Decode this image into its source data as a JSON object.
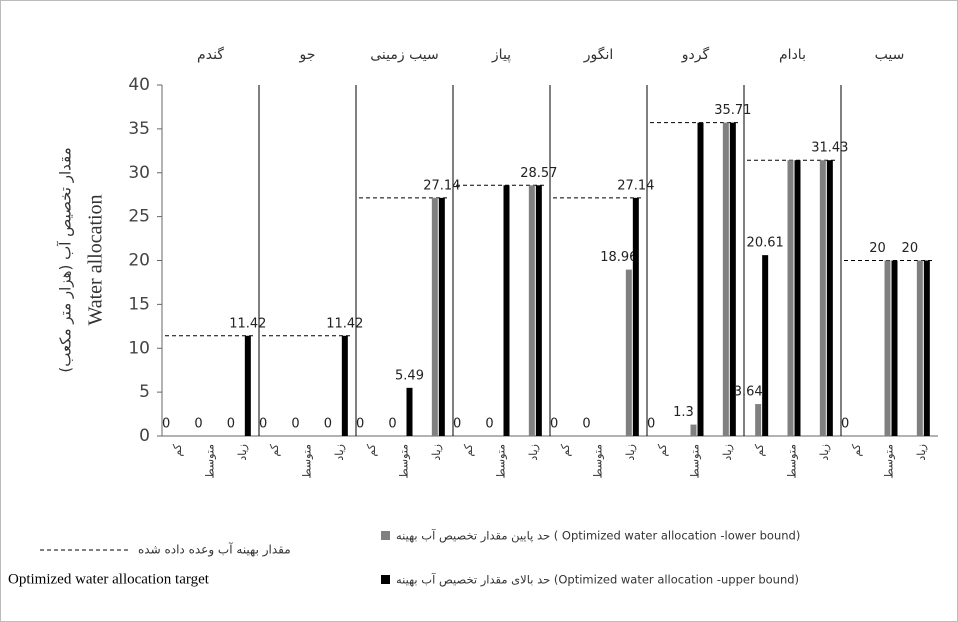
{
  "chart_data": {
    "type": "grouped_bar",
    "y_title_fa": "مقدار تخصیص آب (هزار متر مکعب)",
    "y_title_en": "Water allocation",
    "groups": [
      "گندم",
      "جو",
      "سیب زمینی",
      "پیاز",
      "انگور",
      "گردو",
      "بادام",
      "سیب"
    ],
    "categories": [
      "کم",
      "متوسط",
      "زیاد",
      "کم",
      "متوسط",
      "زیاد",
      "کم",
      "متوسط",
      "زیاد",
      "کم",
      "متوسط",
      "زیاد",
      "کم",
      "متوسط",
      "زیاد",
      "کم",
      "متوسط",
      "زیاد",
      "کم",
      "متوسط",
      "زیاد",
      "کم",
      "متوسط",
      "زیاد"
    ],
    "series": [
      {
        "name": "حد پایین مقدار تخصیص آب بهینه ( Optimized water allocation -lower bound)",
        "color": "#808080",
        "values": [
          0,
          0,
          0,
          0,
          0,
          0,
          0,
          0,
          27.14,
          0,
          0,
          28.57,
          0,
          0,
          18.96,
          0,
          1.3,
          35.71,
          3.64,
          31.43,
          31.43,
          0,
          20,
          20
        ],
        "value_labels": [
          "0",
          "0",
          "0",
          "0",
          "0",
          "0",
          "0",
          "0",
          null,
          "0",
          "0",
          null,
          "0",
          "0",
          "18.96",
          "0",
          "1.3",
          null,
          "3.64",
          null,
          null,
          "0",
          "20",
          "20"
        ]
      },
      {
        "name": "حد بالای مقدار تخصیص آب بهینه (Optimized water allocation -upper bound)",
        "color": "#000000",
        "values": [
          0,
          0,
          11.42,
          0,
          0,
          11.42,
          0,
          5.49,
          27.14,
          0,
          28.57,
          28.57,
          0,
          0,
          27.14,
          0,
          35.71,
          35.71,
          20.61,
          31.43,
          31.43,
          0,
          20,
          20
        ],
        "value_labels": [
          null,
          null,
          "11.42",
          null,
          null,
          "11.42",
          null,
          "5.49",
          "27.14",
          null,
          null,
          "28.57",
          null,
          null,
          "27.14",
          null,
          null,
          "35.71",
          "20.61",
          null,
          "31.43",
          null,
          null,
          null
        ]
      }
    ],
    "target": {
      "name_fa": "مقدار بهینه آب وعده داده شده",
      "name_en": "Optimized water allocation target",
      "values": [
        11.42,
        11.42,
        27.14,
        28.57,
        27.14,
        35.71,
        31.43,
        20
      ]
    },
    "ylim": [
      0,
      40
    ],
    "yticks": [
      0,
      5,
      10,
      15,
      20,
      25,
      30,
      35,
      40
    ]
  }
}
